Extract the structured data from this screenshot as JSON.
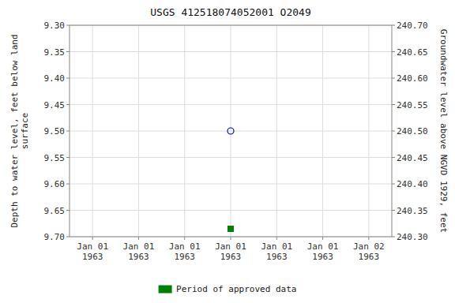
{
  "chart_data": {
    "type": "scatter",
    "title": "USGS 412518074052001 O2049",
    "ylabel": "Depth to water level, feet below land\nsurface",
    "y2label": "Groundwater level above NGVD 1929, feet",
    "categories": [
      "Jan 01\n1963",
      "Jan 01\n1963",
      "Jan 01\n1963",
      "Jan 01\n1963",
      "Jan 01\n1963",
      "Jan 01\n1963",
      "Jan 02\n1963"
    ],
    "series": [
      {
        "color": "blue",
        "marker": "circle",
        "values": [
          null,
          null,
          null,
          9.5,
          null,
          null,
          null
        ]
      },
      {
        "name": "Period of approved data",
        "color": "#008000",
        "marker": "square",
        "values": [
          null,
          null,
          null,
          9.685,
          null,
          null,
          null
        ]
      }
    ],
    "ylim": [
      9.7,
      9.3
    ],
    "yticks": [
      {
        "value": 9.3,
        "label": "9.30"
      },
      9.35,
      {
        "value": 9.4,
        "label": "9.40"
      },
      9.45,
      {
        "value": 9.5,
        "label": "9.50"
      },
      9.55,
      {
        "value": 9.6,
        "label": "9.60"
      },
      9.65,
      {
        "value": 9.7,
        "label": "9.70"
      }
    ],
    "y2lim": [
      240.3,
      240.7
    ],
    "y2ticks": [
      {
        "value": 240.7,
        "label": "240.70"
      },
      240.65,
      {
        "value": 240.6,
        "label": "240.60"
      },
      240.55,
      {
        "value": 240.5,
        "label": "240.50"
      },
      240.45,
      {
        "value": 240.4,
        "label": "240.40"
      },
      240.35,
      {
        "value": 240.3,
        "label": "240.30"
      }
    ],
    "grid": true,
    "legend": "bottom"
  }
}
